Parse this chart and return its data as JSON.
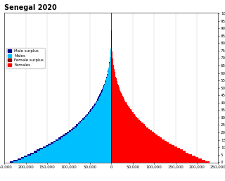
{
  "title": "Senegal 2020",
  "legend_items": [
    "Male surplus",
    "Males",
    "Female surplus",
    "Females"
  ],
  "male_color": "#00BFFF",
  "female_color": "#FF0000",
  "male_surplus_color": "#00008B",
  "female_surplus_color": "#8B0000",
  "xlim": 250000,
  "xticks": [
    -250000,
    -200000,
    -150000,
    -100000,
    -50000,
    0,
    50000,
    100000,
    150000,
    200000,
    250000
  ],
  "xticklabels": [
    "250,000",
    "200,000",
    "150,000",
    "100,000",
    "50,000",
    "0",
    "50,000",
    "100,000",
    "150,000",
    "200,000",
    "250,000"
  ],
  "ages": [
    0,
    1,
    2,
    3,
    4,
    5,
    6,
    7,
    8,
    9,
    10,
    11,
    12,
    13,
    14,
    15,
    16,
    17,
    18,
    19,
    20,
    21,
    22,
    23,
    24,
    25,
    26,
    27,
    28,
    29,
    30,
    31,
    32,
    33,
    34,
    35,
    36,
    37,
    38,
    39,
    40,
    41,
    42,
    43,
    44,
    45,
    46,
    47,
    48,
    49,
    50,
    51,
    52,
    53,
    54,
    55,
    56,
    57,
    58,
    59,
    60,
    61,
    62,
    63,
    64,
    65,
    66,
    67,
    68,
    69,
    70,
    71,
    72,
    73,
    74,
    75,
    76,
    77,
    78,
    79,
    80,
    81,
    82,
    83,
    84,
    85,
    86,
    87,
    88,
    89,
    90,
    91,
    92,
    93,
    94,
    95,
    96,
    97,
    98,
    99,
    100
  ],
  "males": [
    238000,
    229000,
    220000,
    212000,
    204000,
    196000,
    189000,
    182000,
    175000,
    168000,
    161000,
    154000,
    148000,
    142000,
    136000,
    130000,
    124000,
    119000,
    114000,
    109000,
    104000,
    99500,
    95000,
    90700,
    86500,
    82400,
    78500,
    74700,
    71100,
    67600,
    64300,
    61100,
    58000,
    55100,
    52300,
    49600,
    47000,
    44500,
    42100,
    39800,
    37600,
    35500,
    33500,
    31600,
    29700,
    27900,
    26200,
    24600,
    23000,
    21500,
    20100,
    18700,
    17400,
    16200,
    15000,
    13900,
    12900,
    11900,
    10900,
    10000,
    9200,
    8400,
    7700,
    7000,
    6400,
    5800,
    5300,
    4800,
    4400,
    3900,
    3500,
    3100,
    2800,
    2400,
    2100,
    1800,
    1600,
    1400,
    1200,
    1000,
    850,
    720,
    600,
    500,
    410,
    330,
    270,
    220,
    170,
    130,
    100,
    75,
    55,
    40,
    28,
    20,
    14,
    10,
    6,
    4,
    2
  ],
  "females": [
    229000,
    220000,
    212000,
    204000,
    196000,
    188000,
    181000,
    174000,
    167000,
    160000,
    154000,
    147000,
    141000,
    135000,
    130000,
    124000,
    118000,
    113000,
    108000,
    103000,
    99000,
    94500,
    90200,
    86000,
    82000,
    78100,
    74400,
    70800,
    67300,
    63900,
    60700,
    57600,
    54600,
    51700,
    49000,
    46400,
    43900,
    41500,
    39200,
    37000,
    34900,
    32900,
    31000,
    29100,
    27400,
    25700,
    24100,
    22600,
    21100,
    19700,
    18400,
    17100,
    15900,
    14800,
    13700,
    12700,
    11700,
    10800,
    9900,
    9100,
    8400,
    7700,
    7100,
    6500,
    5900,
    5400,
    4900,
    4500,
    4100,
    3700,
    3300,
    3000,
    2700,
    2400,
    2100,
    1800,
    1600,
    1400,
    1200,
    1000,
    870,
    740,
    620,
    510,
    420,
    340,
    270,
    220,
    170,
    130,
    100,
    75,
    55,
    40,
    28,
    20,
    14,
    10,
    6,
    4,
    2
  ],
  "ytick_step": 5,
  "bar_height": 1.0,
  "background_color": "#ffffff",
  "grid_color": "#cccccc",
  "title_fontsize": 7,
  "tick_fontsize": 4,
  "legend_fontsize": 4
}
